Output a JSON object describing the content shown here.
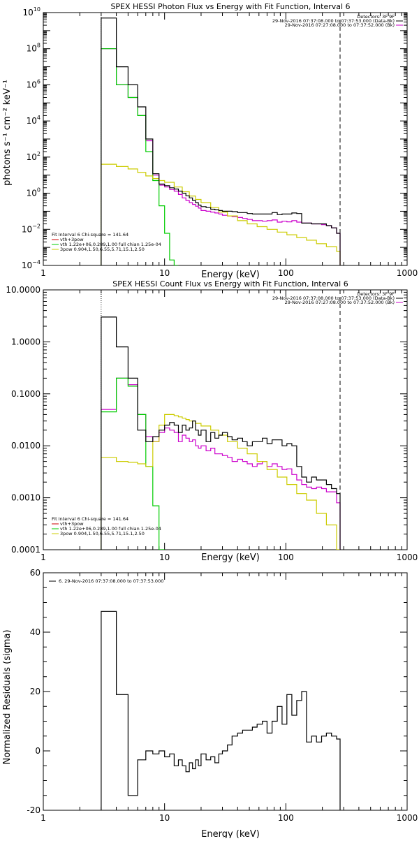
{
  "chart_data": [
    {
      "type": "line",
      "title": "SPEX HESSI Photon Flux vs Energy with Fit Function, Interval 6",
      "xlabel": "Energy (keV)",
      "ylabel": "photons s⁻¹ cm⁻² keV⁻¹",
      "xscale": "log",
      "yscale": "log",
      "xlim": [
        1,
        1000
      ],
      "ylim": [
        0.0001,
        10000000000
      ],
      "xticks": [
        "1",
        "10",
        "100",
        "1000"
      ],
      "yticks": [
        "10^-4",
        "10^-2",
        "10^0",
        "10^2",
        "10^4",
        "10^6",
        "10^8",
        "10^10"
      ],
      "legend_topright": [
        "Detectors: 3F 9F",
        "29-Nov-2016 07:37:08.000 to 07:37:53.000 (Data-Bk)",
        "29-Nov-2016 07:27:08.000 to 07:37:52.000 (Bk)"
      ],
      "legend_bottomleft": [
        "Fit Interval 6    Chi-square = 141.64",
        "vth+3pow",
        "vth 1.22e+06,0.289,1.00  full chian 1.25e-04",
        "3pow 0.904,1.50,6.55,5.71,15.1,2.50"
      ],
      "vlines": [
        3.0,
        280
      ],
      "series": [
        {
          "name": "Data-Bk",
          "color": "#000000",
          "x": [
            3,
            4,
            5,
            6,
            7,
            8,
            9,
            10,
            11,
            12,
            13,
            14,
            15,
            16,
            17,
            18,
            19,
            20,
            22,
            24,
            26,
            28,
            30,
            33,
            36,
            40,
            44,
            48,
            53,
            58,
            64,
            70,
            77,
            85,
            93,
            102,
            112,
            123,
            135,
            148,
            163,
            179,
            197,
            216,
            238,
            262,
            280
          ],
          "y": [
            5000000000.0,
            10000000.0,
            1000000.0,
            60000,
            1000,
            12,
            3.2,
            2.6,
            2.0,
            1.7,
            1.3,
            1.0,
            0.72,
            0.55,
            0.4,
            0.3,
            0.22,
            0.18,
            0.16,
            0.13,
            0.12,
            0.11,
            0.1,
            0.1,
            0.095,
            0.085,
            0.085,
            0.075,
            0.07,
            0.07,
            0.07,
            0.07,
            0.085,
            0.065,
            0.07,
            0.07,
            0.08,
            0.075,
            0.022,
            0.022,
            0.02,
            0.02,
            0.02,
            0.016,
            0.012,
            0.006,
            0.006
          ]
        },
        {
          "name": "vth+3pow",
          "color": "#cc00cc",
          "x": [
            3,
            4,
            5,
            6,
            7,
            8,
            9,
            10,
            11,
            12,
            13,
            14,
            15,
            16,
            17,
            18,
            19,
            20,
            22,
            24,
            26,
            28,
            30,
            33,
            36,
            40,
            44,
            48,
            53,
            58,
            64,
            70,
            77,
            85,
            93,
            102,
            112,
            123,
            135,
            148,
            163,
            179,
            197,
            216,
            238,
            262,
            280
          ],
          "y": [
            100000000.0,
            1000000.0,
            200000,
            20000,
            800,
            10,
            2.8,
            2.2,
            1.6,
            1.3,
            0.85,
            0.55,
            0.4,
            0.3,
            0.24,
            0.19,
            0.15,
            0.11,
            0.1,
            0.09,
            0.08,
            0.07,
            0.06,
            0.055,
            0.05,
            0.045,
            0.04,
            0.035,
            0.03,
            0.03,
            0.028,
            0.03,
            0.033,
            0.025,
            0.028,
            0.026,
            0.03,
            0.025,
            0.022,
            0.022,
            0.02,
            0.02,
            0.018,
            0.016,
            0.012,
            0.006,
            0.006
          ]
        },
        {
          "name": "vth",
          "color": "#00cc00",
          "x": [
            3,
            4,
            5,
            6,
            7,
            8,
            9,
            10,
            11,
            12,
            13
          ],
          "y": [
            100000000.0,
            1000000.0,
            200000,
            20000,
            200,
            5,
            0.2,
            0.006,
            0.0002,
            0.0001,
            0.0001
          ]
        },
        {
          "name": "3pow",
          "color": "#cccc00",
          "x": [
            3,
            4,
            5,
            6,
            7,
            8,
            9,
            10,
            12,
            14,
            16,
            18,
            20,
            24,
            28,
            33,
            40,
            48,
            58,
            70,
            85,
            102,
            123,
            148,
            179,
            216,
            262,
            280
          ],
          "y": [
            40,
            30,
            22,
            14,
            9,
            6.5,
            5,
            4,
            2.2,
            1.2,
            0.7,
            0.45,
            0.3,
            0.16,
            0.09,
            0.055,
            0.03,
            0.02,
            0.014,
            0.01,
            0.007,
            0.005,
            0.0035,
            0.0025,
            0.0016,
            0.0011,
            0.0006,
            0.0001
          ]
        }
      ]
    },
    {
      "type": "line",
      "title": "SPEX HESSI Count Flux vs Energy with Fit Function, Interval 6",
      "xlabel": "Energy (keV)",
      "ylabel": "",
      "xscale": "log",
      "yscale": "log",
      "xlim": [
        1,
        1000
      ],
      "ylim": [
        0.0001,
        10
      ],
      "xticks": [
        "1",
        "10",
        "100",
        "1000"
      ],
      "yticks": [
        "0.0001",
        "0.0010",
        "0.0100",
        "0.1000",
        "1.0000",
        "10.0000"
      ],
      "legend_topright": [
        "Detectors: 3F 9F",
        "29-Nov-2016 07:37:08.000 to 07:37:53.000 (Data-Bk)",
        "29-Nov-2016 07:27:08.000 to 07:37:52.000 (Bk)"
      ],
      "legend_bottomleft": [
        "Fit Interval 6    Chi-square = 141.64",
        "vth+3pow",
        "vth 1.22e+06,0.289,1.00  full chian 1.25e-04",
        "3pow 0.904,1.50,6.55,5.71,15.1,2.50"
      ],
      "vlines": [
        3.0,
        280
      ],
      "series": [
        {
          "name": "Data-Bk",
          "color": "#000000",
          "x": [
            3,
            4,
            5,
            6,
            7,
            8,
            9,
            10,
            11,
            12,
            13,
            14,
            15,
            16,
            17,
            18,
            19,
            20,
            22,
            24,
            26,
            28,
            30,
            33,
            36,
            40,
            44,
            48,
            53,
            58,
            64,
            70,
            77,
            85,
            93,
            102,
            112,
            123,
            135,
            148,
            163,
            179,
            197,
            216,
            238,
            262,
            280
          ],
          "y": [
            3.0,
            0.8,
            0.2,
            0.02,
            0.012,
            0.015,
            0.02,
            0.025,
            0.028,
            0.025,
            0.018,
            0.025,
            0.02,
            0.022,
            0.03,
            0.02,
            0.016,
            0.02,
            0.012,
            0.018,
            0.014,
            0.016,
            0.018,
            0.015,
            0.013,
            0.014,
            0.012,
            0.01,
            0.012,
            0.012,
            0.014,
            0.011,
            0.013,
            0.013,
            0.01,
            0.011,
            0.01,
            0.004,
            0.0025,
            0.002,
            0.0025,
            0.0022,
            0.0022,
            0.0018,
            0.0015,
            0.0012,
            0.0001
          ]
        },
        {
          "name": "vth+3pow",
          "color": "#cc00cc",
          "x": [
            3,
            4,
            5,
            6,
            7,
            8,
            9,
            10,
            11,
            12,
            13,
            14,
            15,
            16,
            17,
            18,
            19,
            20,
            22,
            24,
            26,
            28,
            30,
            33,
            36,
            40,
            44,
            48,
            53,
            58,
            64,
            70,
            77,
            85,
            93,
            102,
            112,
            123,
            135,
            148,
            163,
            179,
            197,
            216,
            238,
            262,
            280
          ],
          "y": [
            0.05,
            0.2,
            0.15,
            0.04,
            0.015,
            0.012,
            0.018,
            0.022,
            0.02,
            0.018,
            0.012,
            0.016,
            0.014,
            0.012,
            0.013,
            0.01,
            0.009,
            0.01,
            0.008,
            0.009,
            0.007,
            0.007,
            0.0065,
            0.006,
            0.005,
            0.0055,
            0.005,
            0.0045,
            0.004,
            0.0045,
            0.005,
            0.004,
            0.0045,
            0.004,
            0.0035,
            0.0036,
            0.0028,
            0.0022,
            0.0018,
            0.0016,
            0.0015,
            0.0016,
            0.0015,
            0.0013,
            0.0013,
            0.0008,
            0.0001
          ]
        },
        {
          "name": "vth",
          "color": "#00cc00",
          "x": [
            3,
            4,
            5,
            6,
            7,
            8,
            9,
            10
          ],
          "y": [
            0.045,
            0.2,
            0.14,
            0.04,
            0.004,
            0.0007,
            0.0001,
            0.0001
          ]
        },
        {
          "name": "3pow",
          "color": "#cccc00",
          "x": [
            3,
            4,
            5,
            6,
            7,
            8,
            9,
            10,
            11,
            12,
            13,
            14,
            15,
            16,
            18,
            20,
            24,
            28,
            33,
            40,
            48,
            58,
            70,
            85,
            102,
            123,
            148,
            179,
            216,
            262,
            280
          ],
          "y": [
            0.006,
            0.005,
            0.0048,
            0.0045,
            0.004,
            0.012,
            0.025,
            0.04,
            0.04,
            0.038,
            0.036,
            0.034,
            0.032,
            0.03,
            0.027,
            0.024,
            0.02,
            0.016,
            0.012,
            0.009,
            0.007,
            0.005,
            0.0035,
            0.0025,
            0.0018,
            0.0012,
            0.0009,
            0.0005,
            0.0003,
            0.0001,
            0.0001
          ]
        }
      ]
    },
    {
      "type": "line",
      "title": "",
      "xlabel": "Energy (keV)",
      "ylabel": "Normalized Residuals (sigma)",
      "xscale": "log",
      "yscale": "linear",
      "xlim": [
        1,
        1000
      ],
      "ylim": [
        -20,
        60
      ],
      "xticks": [
        "1",
        "10",
        "100",
        "1000"
      ],
      "yticks": [
        "-20",
        "0",
        "20",
        "40",
        "60"
      ],
      "legend_topleft": [
        "6. 29-Nov-2016 07:37:08.000 to 07:37:53.000"
      ],
      "series": [
        {
          "name": "6. 29-Nov-2016 07:37:08.000 to 07:37:53.000",
          "color": "#000000",
          "x": [
            3,
            4,
            5,
            6,
            7,
            8,
            9,
            10,
            11,
            12,
            13,
            14,
            15,
            16,
            17,
            18,
            19,
            20,
            22,
            24,
            26,
            28,
            30,
            33,
            36,
            40,
            44,
            48,
            53,
            58,
            64,
            70,
            77,
            85,
            93,
            102,
            112,
            123,
            135,
            148,
            163,
            179,
            197,
            216,
            238,
            262,
            280
          ],
          "y": [
            47,
            19,
            -15,
            -3,
            0,
            -1,
            0,
            -2,
            -1,
            -5,
            -3,
            -5,
            -7,
            -4,
            -6,
            -3,
            -5,
            -1,
            -3,
            -2,
            -4,
            -1,
            0,
            2,
            5,
            6,
            7,
            7,
            8,
            9,
            10,
            6,
            10,
            15,
            9,
            19,
            12,
            17,
            20,
            3,
            5,
            3,
            5,
            6,
            5,
            4,
            4
          ]
        }
      ]
    }
  ]
}
